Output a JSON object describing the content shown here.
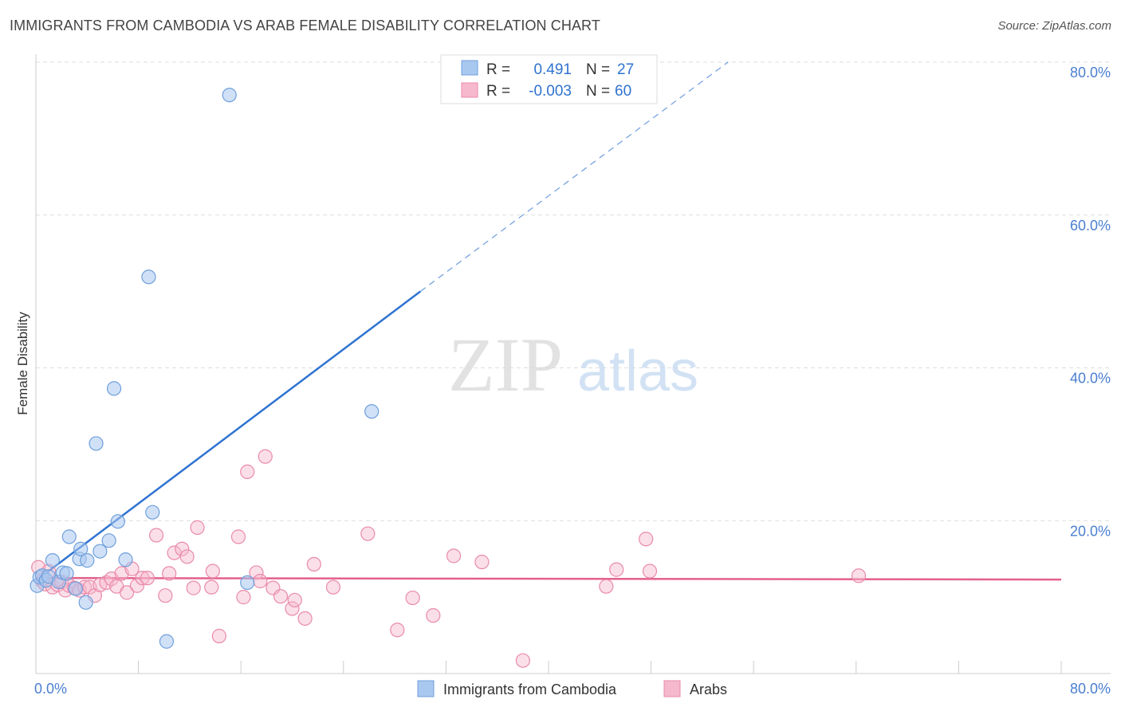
{
  "title": "IMMIGRANTS FROM CAMBODIA VS ARAB FEMALE DISABILITY CORRELATION CHART",
  "source": "Source: ZipAtlas.com",
  "watermark": {
    "zip": "ZIP",
    "atlas": "atlas"
  },
  "colors": {
    "blue_fill": "#a9c8f0",
    "blue_stroke": "#6f9fdc",
    "blue_line": "#2f73d0",
    "pink_fill": "#f6b8cc",
    "pink_stroke": "#e98aaa",
    "pink_line": "#e4608c",
    "tick_text": "#4a7fd0",
    "grid": "#dddddd"
  },
  "legend": {
    "rows": [
      {
        "r_label": "R =",
        "r_value": "0.491",
        "n_label": "N =",
        "n_value": "27"
      },
      {
        "r_label": "R =",
        "r_value": "-0.003",
        "n_label": "N =",
        "n_value": "60"
      }
    ]
  },
  "bottom_legend": [
    {
      "label": "Immigrants from Cambodia"
    },
    {
      "label": "Arabs"
    }
  ],
  "chart_data": {
    "type": "scatter",
    "title": "IMMIGRANTS FROM CAMBODIA VS ARAB FEMALE DISABILITY CORRELATION CHART",
    "xlabel": "",
    "ylabel": "Female Disability",
    "xlim": [
      0,
      80
    ],
    "ylim": [
      0,
      80
    ],
    "x_tick_labels": [
      "0.0%",
      "80.0%"
    ],
    "y_ticks": [
      20,
      40,
      60,
      80
    ],
    "y_tick_labels": [
      "20.0%",
      "40.0%",
      "60.0%",
      "80.0%"
    ],
    "series": [
      {
        "name": "Immigrants from Cambodia",
        "R": 0.491,
        "N": 27,
        "trend": {
          "x0": 0.2,
          "y0": 12.4,
          "x1": 30.0,
          "y1": 50.0,
          "dash_x1": 54.0,
          "dash_y1": 80.0
        },
        "points": [
          [
            0.1,
            11.5
          ],
          [
            0.3,
            12.6
          ],
          [
            0.5,
            12.8
          ],
          [
            0.8,
            12.2
          ],
          [
            1.0,
            12.7
          ],
          [
            1.3,
            14.8
          ],
          [
            1.8,
            12.0
          ],
          [
            2.1,
            13.2
          ],
          [
            2.4,
            13.1
          ],
          [
            2.6,
            17.9
          ],
          [
            3.1,
            11.1
          ],
          [
            3.4,
            15.0
          ],
          [
            3.5,
            16.3
          ],
          [
            3.9,
            9.3
          ],
          [
            4.0,
            14.8
          ],
          [
            4.7,
            30.1
          ],
          [
            5.0,
            16.0
          ],
          [
            5.7,
            17.4
          ],
          [
            6.1,
            37.3
          ],
          [
            6.4,
            19.9
          ],
          [
            7.0,
            14.9
          ],
          [
            8.8,
            51.9
          ],
          [
            9.1,
            21.1
          ],
          [
            10.2,
            4.2
          ],
          [
            15.1,
            75.7
          ],
          [
            16.5,
            11.9
          ],
          [
            26.2,
            34.3
          ]
        ]
      },
      {
        "name": "Arabs",
        "R": -0.003,
        "N": 60,
        "trend": {
          "x0": 0.0,
          "y0": 12.5,
          "x1": 80.0,
          "y1": 12.3
        },
        "points": [
          [
            0.2,
            13.9
          ],
          [
            0.5,
            12.1
          ],
          [
            0.7,
            11.7
          ],
          [
            1.0,
            13.4
          ],
          [
            1.3,
            11.3
          ],
          [
            1.7,
            11.6
          ],
          [
            2.0,
            12.0
          ],
          [
            2.3,
            10.9
          ],
          [
            2.6,
            11.5
          ],
          [
            3.0,
            11.2
          ],
          [
            3.4,
            10.9
          ],
          [
            3.8,
            11.3
          ],
          [
            4.2,
            11.3
          ],
          [
            4.6,
            10.2
          ],
          [
            5.0,
            11.6
          ],
          [
            5.5,
            11.9
          ],
          [
            5.9,
            12.4
          ],
          [
            6.3,
            11.4
          ],
          [
            6.7,
            13.1
          ],
          [
            7.1,
            10.6
          ],
          [
            7.5,
            13.7
          ],
          [
            7.9,
            11.5
          ],
          [
            8.3,
            12.5
          ],
          [
            8.7,
            12.5
          ],
          [
            9.4,
            18.1
          ],
          [
            10.1,
            10.2
          ],
          [
            10.4,
            13.1
          ],
          [
            10.8,
            15.8
          ],
          [
            11.4,
            16.3
          ],
          [
            11.8,
            15.3
          ],
          [
            12.3,
            11.2
          ],
          [
            12.6,
            19.1
          ],
          [
            13.7,
            11.3
          ],
          [
            13.8,
            13.4
          ],
          [
            14.3,
            4.9
          ],
          [
            15.8,
            17.9
          ],
          [
            16.2,
            10.0
          ],
          [
            16.5,
            26.4
          ],
          [
            17.2,
            13.2
          ],
          [
            17.5,
            12.1
          ],
          [
            17.9,
            28.4
          ],
          [
            18.5,
            11.2
          ],
          [
            19.1,
            10.1
          ],
          [
            20.0,
            8.5
          ],
          [
            20.2,
            9.6
          ],
          [
            21.0,
            7.2
          ],
          [
            21.7,
            14.3
          ],
          [
            23.2,
            11.3
          ],
          [
            25.9,
            18.3
          ],
          [
            28.2,
            5.7
          ],
          [
            29.4,
            9.9
          ],
          [
            31.0,
            7.6
          ],
          [
            32.6,
            15.4
          ],
          [
            34.8,
            14.6
          ],
          [
            38.0,
            1.7
          ],
          [
            44.5,
            11.4
          ],
          [
            45.3,
            13.6
          ],
          [
            47.6,
            17.6
          ],
          [
            47.9,
            13.4
          ],
          [
            64.2,
            12.8
          ]
        ]
      }
    ]
  }
}
